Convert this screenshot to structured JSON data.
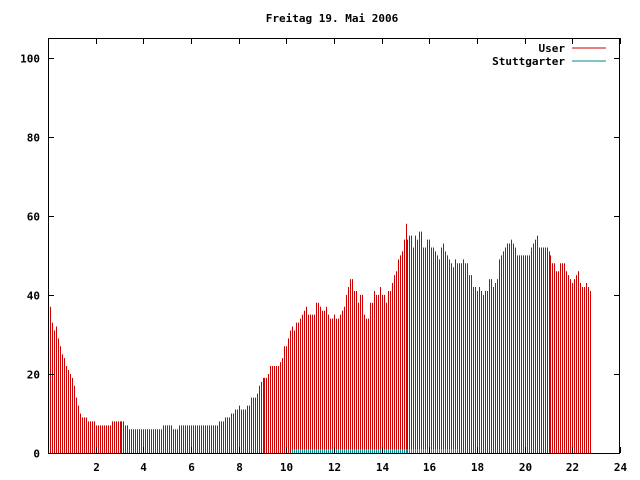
{
  "colors": {
    "user": "#cc0000",
    "stuttgarter": "#008b8b",
    "axis": "#000000",
    "background": "#ffffff"
  },
  "chart_data": {
    "type": "bar",
    "title": "Freitag 19. Mai 2006",
    "xlabel": "",
    "ylabel": "",
    "xlim": [
      0,
      24
    ],
    "ylim": [
      0,
      105
    ],
    "xticks": [
      "2",
      "4",
      "6",
      "8",
      "10",
      "12",
      "14",
      "16",
      "18",
      "20",
      "22",
      "24"
    ],
    "yticks": [
      "0",
      "20",
      "40",
      "60",
      "80",
      "100"
    ],
    "grid": false,
    "legend_position": "top-right",
    "bin_minutes": 5,
    "series": [
      {
        "name": "User",
        "start_hour": 0,
        "values": [
          38,
          37,
          33,
          31,
          32,
          29,
          27,
          25,
          24,
          22,
          21,
          20,
          19,
          17,
          14,
          12,
          10,
          9,
          9,
          9,
          8,
          8,
          8,
          8,
          7,
          7,
          7,
          7,
          7,
          7,
          7,
          7,
          8,
          8,
          8,
          8,
          8,
          8,
          8,
          7,
          7,
          6,
          6,
          6,
          6,
          6,
          6,
          6,
          6,
          6,
          6,
          6,
          6,
          6,
          6,
          6,
          6,
          6,
          7,
          7,
          7,
          7,
          7,
          6,
          6,
          6,
          7,
          7,
          7,
          7,
          7,
          7,
          7,
          7,
          7,
          7,
          7,
          7,
          7,
          7,
          7,
          7,
          7,
          7,
          7,
          7,
          8,
          8,
          8,
          9,
          9,
          9,
          10,
          10,
          11,
          11,
          12,
          11,
          11,
          11,
          12,
          12,
          14,
          14,
          14,
          15,
          17,
          18,
          19,
          19,
          19,
          20,
          22,
          22,
          22,
          22,
          22,
          23,
          24,
          27,
          27,
          29,
          31,
          32,
          31,
          33,
          33,
          34,
          35,
          36,
          37,
          35,
          35,
          35,
          35,
          38,
          38,
          37,
          36,
          36,
          37,
          35,
          34,
          34,
          35,
          34,
          34,
          35,
          36,
          37,
          40,
          42,
          44,
          44,
          41,
          41,
          38,
          40,
          40,
          35,
          34,
          34,
          38,
          38,
          41,
          40,
          40,
          42,
          40,
          40,
          38,
          41,
          41,
          43,
          45,
          46,
          49,
          50,
          51,
          54,
          58,
          54,
          55,
          55,
          52,
          55,
          54,
          56,
          56,
          52,
          52,
          54,
          54,
          52,
          52,
          51,
          50,
          49,
          52,
          53,
          51,
          50,
          49,
          48,
          47,
          49,
          48,
          48,
          48,
          49,
          48,
          48,
          45,
          45,
          42,
          42,
          41,
          42,
          41,
          40,
          41,
          41,
          44,
          44,
          42,
          43,
          44,
          49,
          50,
          51,
          52,
          53,
          53,
          54,
          53,
          52,
          50,
          50,
          50,
          50,
          50,
          50,
          50,
          52,
          53,
          54,
          55,
          52,
          52,
          52,
          52,
          52,
          51,
          50,
          48,
          48,
          46,
          46,
          48,
          48,
          48,
          46,
          45,
          44,
          43,
          44,
          45,
          46,
          43,
          42,
          42,
          43,
          42,
          41
        ]
      },
      {
        "name": "Stuttgarter",
        "start_hour": 10.25,
        "values": [
          1,
          1,
          1,
          1,
          1,
          1,
          1,
          1,
          1,
          1,
          1,
          1,
          1,
          1,
          1,
          1,
          1,
          1,
          1,
          1,
          1,
          1,
          1,
          1,
          1,
          1,
          1,
          1,
          1,
          1,
          1,
          1,
          1,
          1,
          1,
          1,
          1,
          1,
          1,
          1,
          1,
          1,
          1,
          1,
          1,
          1,
          1,
          1,
          1,
          1,
          1,
          1,
          1,
          1,
          1,
          1,
          1,
          1,
          1,
          1,
          1,
          1,
          1,
          1,
          1,
          1,
          1,
          1,
          1,
          1,
          1,
          1,
          1,
          1,
          1,
          1,
          1,
          1,
          1,
          1,
          1,
          1,
          1,
          1
        ]
      }
    ]
  }
}
